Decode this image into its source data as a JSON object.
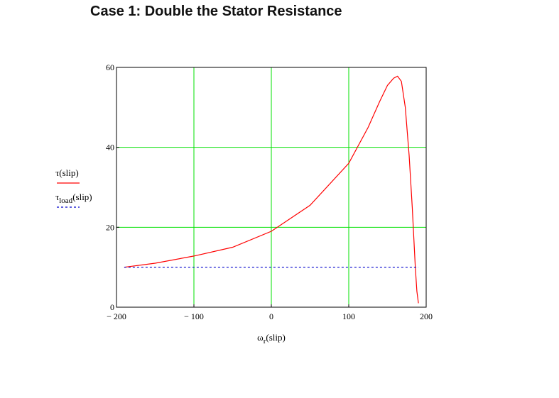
{
  "page": {
    "title": "Case 1:  Double the Stator Resistance"
  },
  "chart_data": {
    "type": "line",
    "title": "Case 1:  Double the Stator Resistance",
    "xlabel": "ω",
    "xlabel_sub": "r",
    "xlabel_suffix": "(slip)",
    "xlim": [
      -200,
      200
    ],
    "ylim": [
      0,
      60
    ],
    "x_ticks": [
      -200,
      -100,
      0,
      100,
      200
    ],
    "x_tick_labels": [
      "− 200",
      "− 100",
      "0",
      "100",
      "200"
    ],
    "y_ticks": [
      0,
      20,
      40,
      60
    ],
    "y_tick_labels": [
      "0",
      "20",
      "40",
      "60"
    ],
    "grid": true,
    "grid_color": "#00e000",
    "series": [
      {
        "name": "τ(slip)",
        "name_main": "τ",
        "name_sub": "",
        "name_suffix": "(slip)",
        "color": "#ff0000",
        "style": "solid",
        "x": [
          -190,
          -150,
          -100,
          -50,
          0,
          50,
          100,
          125,
          140,
          150,
          158,
          163,
          168,
          173,
          178,
          182,
          186,
          188,
          190
        ],
        "y": [
          10,
          11,
          12.8,
          15,
          19,
          25.5,
          36,
          45,
          51.5,
          55.5,
          57.3,
          57.8,
          56.5,
          50,
          38,
          25,
          10,
          4,
          1
        ]
      },
      {
        "name": "τload(slip)",
        "name_main": "τ",
        "name_sub": "load",
        "name_suffix": "(slip)",
        "color": "#0000cc",
        "style": "dashed",
        "x": [
          -190,
          190
        ],
        "y": [
          10,
          10
        ]
      }
    ],
    "legend": "left"
  }
}
